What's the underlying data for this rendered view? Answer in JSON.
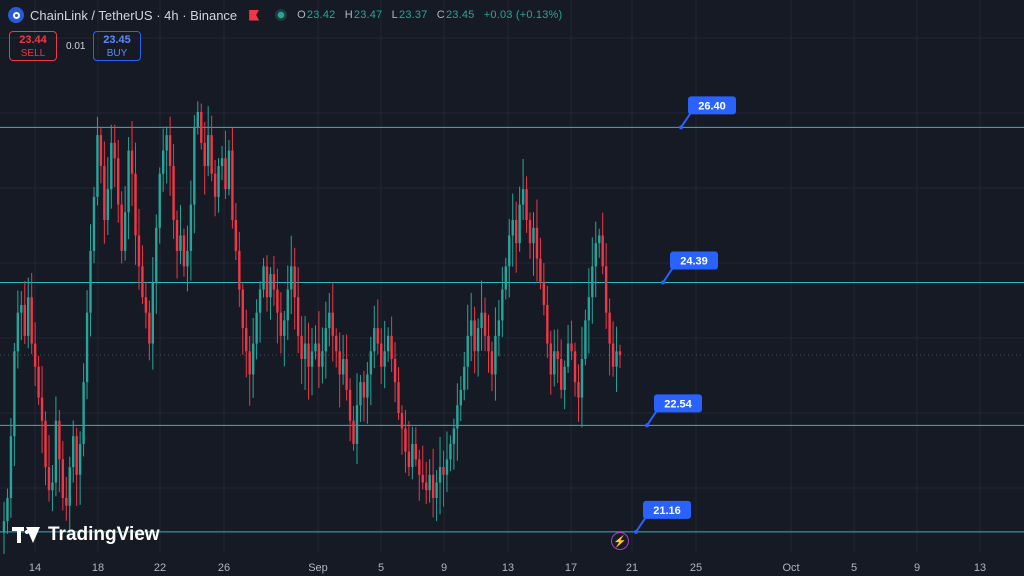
{
  "header": {
    "symbol_title": "ChainLink / TetherUS · 4h · Binance",
    "ohlc": {
      "o_label": "O",
      "o": "23.42",
      "h_label": "H",
      "h": "23.47",
      "l_label": "L",
      "l": "23.37",
      "c_label": "C",
      "c": "23.45",
      "change": "+0.03 (+0.13%)"
    }
  },
  "trade": {
    "sell_price": "23.44",
    "sell_label": "SELL",
    "spread": "0.01",
    "buy_price": "23.45",
    "buy_label": "BUY"
  },
  "branding": {
    "logo_text": "TradingView"
  },
  "colors": {
    "background": "#161a25",
    "up": "#26a69a",
    "down": "#f23645",
    "level_line": "#2bb7c7",
    "label_bg": "#2962ff"
  },
  "chart_data": {
    "type": "candlestick",
    "title": "ChainLink / TetherUS · 4h · Binance",
    "grid": true,
    "x_ticks": [
      "14",
      "18",
      "22",
      "26",
      "Sep",
      "5",
      "9",
      "13",
      "17",
      "21",
      "25",
      "Oct",
      "5",
      "9",
      "13"
    ],
    "ylim": [
      20.9,
      28.05
    ],
    "last_price": 23.45,
    "levels": [
      {
        "label": "26.40",
        "value": 26.4
      },
      {
        "label": "24.39",
        "value": 24.39
      },
      {
        "label": "22.54",
        "value": 22.54
      },
      {
        "label": "21.16",
        "value": 21.16
      }
    ],
    "closes": [
      21.3,
      21.6,
      22.4,
      23.5,
      24.0,
      24.1,
      23.7,
      24.2,
      23.6,
      23.3,
      22.9,
      22.6,
      22.0,
      21.7,
      21.8,
      22.6,
      22.1,
      21.6,
      21.5,
      22.0,
      22.4,
      21.9,
      22.3,
      23.1,
      24.0,
      24.8,
      25.5,
      26.3,
      25.9,
      25.2,
      25.6,
      26.2,
      26.0,
      25.4,
      24.8,
      25.3,
      26.1,
      25.8,
      25.0,
      24.6,
      24.2,
      24.0,
      23.6,
      24.4,
      25.1,
      25.8,
      26.1,
      26.3,
      25.9,
      25.2,
      24.8,
      25.0,
      24.6,
      24.8,
      25.4,
      26.4,
      26.6,
      26.2,
      25.9,
      26.3,
      25.8,
      25.5,
      25.9,
      26.0,
      25.6,
      26.1,
      25.2,
      24.8,
      24.3,
      23.8,
      23.5,
      23.2,
      23.6,
      24.0,
      24.3,
      24.6,
      24.2,
      24.5,
      24.3,
      24.0,
      23.7,
      23.9,
      24.3,
      24.6,
      24.2,
      23.7,
      23.4,
      23.6,
      23.3,
      23.5,
      23.6,
      23.3,
      23.5,
      23.8,
      24.0,
      23.7,
      23.5,
      23.2,
      23.4,
      23.0,
      22.6,
      22.3,
      22.8,
      23.1,
      22.9,
      23.2,
      23.5,
      23.8,
      23.6,
      23.3,
      23.5,
      23.7,
      23.4,
      23.1,
      22.7,
      22.5,
      22.2,
      22.0,
      22.3,
      22.1,
      21.9,
      21.8,
      21.7,
      21.9,
      21.6,
      21.8,
      22.0,
      21.9,
      22.1,
      22.3,
      22.5,
      22.8,
      23.0,
      23.3,
      23.7,
      23.9,
      23.5,
      23.8,
      24.0,
      23.7,
      23.5,
      23.2,
      23.7,
      23.9,
      24.3,
      24.6,
      25.0,
      25.2,
      24.9,
      25.4,
      25.6,
      25.2,
      24.9,
      25.1,
      24.7,
      24.4,
      24.1,
      23.6,
      23.2,
      23.5,
      23.4,
      23.0,
      23.3,
      23.6,
      23.5,
      23.1,
      22.9,
      23.4,
      23.9,
      24.2,
      24.6,
      24.9,
      25.0,
      24.6,
      24.0,
      23.6,
      23.3,
      23.5,
      23.45
    ]
  }
}
